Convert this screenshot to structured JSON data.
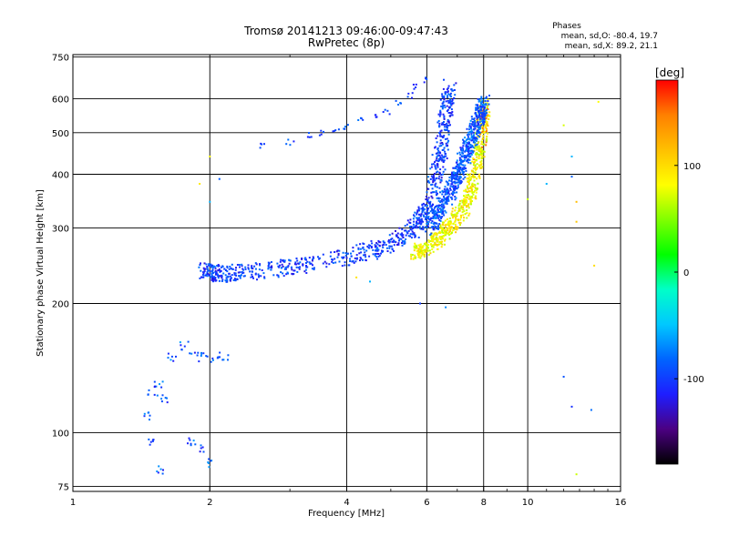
{
  "header": {
    "title_line1": "Tromsø 20141213 09:46:00-09:47:43",
    "title_line2": "RwPretec (8p)",
    "phase_title": "Phases",
    "phase_line1": "mean, sd,O: -80.4, 19.7",
    "phase_line2": "mean, sd,X:  89.2, 21.1"
  },
  "colorbar": {
    "unit_label": "[deg]",
    "tick_labels": [
      "100",
      "0",
      "-100"
    ],
    "tick_values": [
      100,
      0,
      -100
    ],
    "range": [
      -180,
      180
    ],
    "colormap": [
      "#000000",
      "#4b0082",
      "#1e1eff",
      "#0064ff",
      "#00c8ff",
      "#00ffc8",
      "#00ff00",
      "#80ff00",
      "#ffff00",
      "#ffc000",
      "#ff8000",
      "#ff0000"
    ]
  },
  "chart_data": {
    "type": "scatter",
    "title": "Tromsø 20141213 09:46:00-09:47:43",
    "subtitle": "RwPretec (8p)",
    "xlabel": "Frequency [MHz]",
    "ylabel": "Stationary phase Virtual Height [km]",
    "xscale": "log",
    "yscale": "log",
    "xlim": [
      1,
      16
    ],
    "ylim": [
      73,
      760
    ],
    "x_ticks": [
      1,
      2,
      4,
      6,
      8,
      10,
      16
    ],
    "x_tick_labels": [
      "1",
      "2",
      "4",
      "6",
      "8",
      "10",
      "16"
    ],
    "y_ticks": [
      75,
      100,
      200,
      300,
      400,
      500,
      600,
      750
    ],
    "y_tick_labels": [
      "75",
      "100",
      "200",
      "300",
      "400",
      "500",
      "600",
      "750"
    ],
    "grid": true,
    "color_dimension": "Phase [deg]",
    "traces": [
      {
        "name": "O",
        "points": [
          [
            1.95,
            238
          ],
          [
            2.0,
            236
          ],
          [
            2.1,
            234
          ],
          [
            2.3,
            236
          ],
          [
            2.6,
            238
          ],
          [
            3.0,
            243
          ],
          [
            3.5,
            250
          ],
          [
            4.0,
            257
          ],
          [
            4.5,
            265
          ],
          [
            5.0,
            277
          ],
          [
            5.5,
            292
          ],
          [
            5.8,
            310
          ],
          [
            6.0,
            330
          ],
          [
            6.2,
            365
          ],
          [
            6.35,
            410
          ],
          [
            6.45,
            460
          ],
          [
            6.55,
            520
          ],
          [
            6.65,
            580
          ],
          [
            6.75,
            640
          ]
        ],
        "phase": -100
      },
      {
        "name": "X",
        "points": [
          [
            5.6,
            262
          ],
          [
            6.0,
            270
          ],
          [
            6.4,
            285
          ],
          [
            6.8,
            305
          ],
          [
            7.2,
            330
          ],
          [
            7.5,
            365
          ],
          [
            7.7,
            410
          ],
          [
            7.85,
            460
          ],
          [
            7.95,
            520
          ],
          [
            8.05,
            580
          ]
        ],
        "phase": 85
      },
      {
        "name": "O-spread",
        "points": [
          [
            6.1,
            300
          ],
          [
            6.5,
            340
          ],
          [
            6.9,
            380
          ],
          [
            7.2,
            430
          ],
          [
            7.5,
            480
          ],
          [
            7.8,
            540
          ],
          [
            8.0,
            590
          ]
        ],
        "phase": -90
      }
    ],
    "upper_branch": [
      [
        2.6,
        465
      ],
      [
        3.0,
        475
      ],
      [
        3.3,
        492
      ],
      [
        3.5,
        500
      ],
      [
        3.8,
        505
      ],
      [
        4.0,
        515
      ],
      [
        4.3,
        535
      ],
      [
        4.6,
        545
      ],
      [
        4.9,
        560
      ],
      [
        5.2,
        585
      ],
      [
        5.5,
        610
      ],
      [
        5.7,
        640
      ],
      [
        6.0,
        665
      ]
    ],
    "low_cluster": [
      [
        1.45,
        110
      ],
      [
        1.5,
        125
      ],
      [
        1.55,
        130
      ],
      [
        1.6,
        120
      ],
      [
        1.65,
        150
      ],
      [
        1.75,
        160
      ],
      [
        1.85,
        150
      ],
      [
        1.95,
        150
      ],
      [
        2.05,
        148
      ],
      [
        2.15,
        150
      ],
      [
        1.8,
        95
      ],
      [
        1.9,
        92
      ],
      [
        2.0,
        85
      ],
      [
        1.5,
        95
      ],
      [
        1.55,
        82
      ]
    ],
    "sparse_points": [
      [
        2.0,
        440
      ],
      [
        2.1,
        390
      ],
      [
        1.9,
        380
      ],
      [
        2.0,
        345
      ],
      [
        10.0,
        350
      ],
      [
        11.0,
        380
      ],
      [
        12.0,
        520
      ],
      [
        12.5,
        440
      ],
      [
        12.5,
        395
      ],
      [
        12.8,
        345
      ],
      [
        12.8,
        310
      ],
      [
        14.0,
        245
      ],
      [
        14.3,
        590
      ],
      [
        12.0,
        135
      ],
      [
        12.5,
        115
      ],
      [
        13.8,
        113
      ],
      [
        12.8,
        80
      ],
      [
        5.8,
        200
      ],
      [
        6.6,
        196
      ],
      [
        4.5,
        225
      ],
      [
        4.2,
        230
      ]
    ]
  }
}
